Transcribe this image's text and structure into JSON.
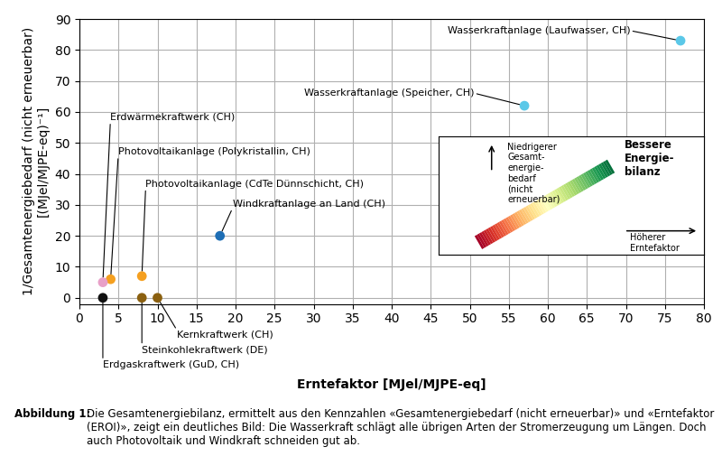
{
  "chart_data": {
    "type": "scatter",
    "xlabel": "Erntefaktor [MJel/MJPE-eq]",
    "ylabel": "1/Gesamtenergiebedarf (nicht erneuerbar)\n[(MJel/MJPE-eq)⁻¹]",
    "points": [
      {
        "label": "Wasserkraftanlage (Laufwasser, CH)",
        "x": 77,
        "y": 83,
        "color": "#5BC8E8"
      },
      {
        "label": "Wasserkraftanlage (Speicher, CH)",
        "x": 57,
        "y": 62,
        "color": "#5BC8E8"
      },
      {
        "label": "Windkraftanlage an Land (CH)",
        "x": 18,
        "y": 20,
        "color": "#1e6eb5"
      },
      {
        "label": "Photovoltaikanlage (Polykristallin, CH)",
        "x": 4,
        "y": 6,
        "color": "#f5a020"
      },
      {
        "label": "Photovoltaikanlage (CdTe Dünnschicht, CH)",
        "x": 8,
        "y": 7,
        "color": "#f5a020"
      },
      {
        "label": "Erdwärmekraftwerk (CH)",
        "x": 3,
        "y": 5,
        "color": "#e8a0c8"
      },
      {
        "label": "Kernkraftwerk (CH)",
        "x": 10,
        "y": 0,
        "color": "#8B6010"
      },
      {
        "label": "Steinkohlekraftwerk (DE)",
        "x": 8,
        "y": 0,
        "color": "#8B6010"
      },
      {
        "label": "Erdgaskraftwerk (GuD, CH)",
        "x": 3,
        "y": 0,
        "color": "#111111"
      }
    ],
    "xlim": [
      0,
      80
    ],
    "ylim": [
      -2,
      90
    ],
    "xticks": [
      0,
      5,
      10,
      15,
      20,
      25,
      30,
      35,
      40,
      45,
      50,
      55,
      60,
      65,
      70,
      75,
      80
    ],
    "yticks": [
      0,
      10,
      20,
      30,
      40,
      50,
      60,
      70,
      80,
      90
    ],
    "grid": true,
    "inset": {
      "title": "Bessere\nEnergie-\nbilanz",
      "y_arrow_label": "Niedrigerer\nGesamt-\nenergie-\nbedarf\n(nicht\nerneuerbar)",
      "x_arrow_label": "Höherer\nErntefaktor"
    },
    "caption_label": "Abbildung 1:",
    "caption": "Die Gesamtenergiebilanz, ermittelt aus den Kennzahlen «Gesamtenergiebedarf (nicht erneuerbar)» und «Erntefaktor (EROI)», zeigt ein deutliches Bild: Die Wasserkraft schlägt alle übrigen Arten der Stromerzeugung um Längen. Doch auch Photovoltaik und Windkraft schneiden gut ab."
  }
}
